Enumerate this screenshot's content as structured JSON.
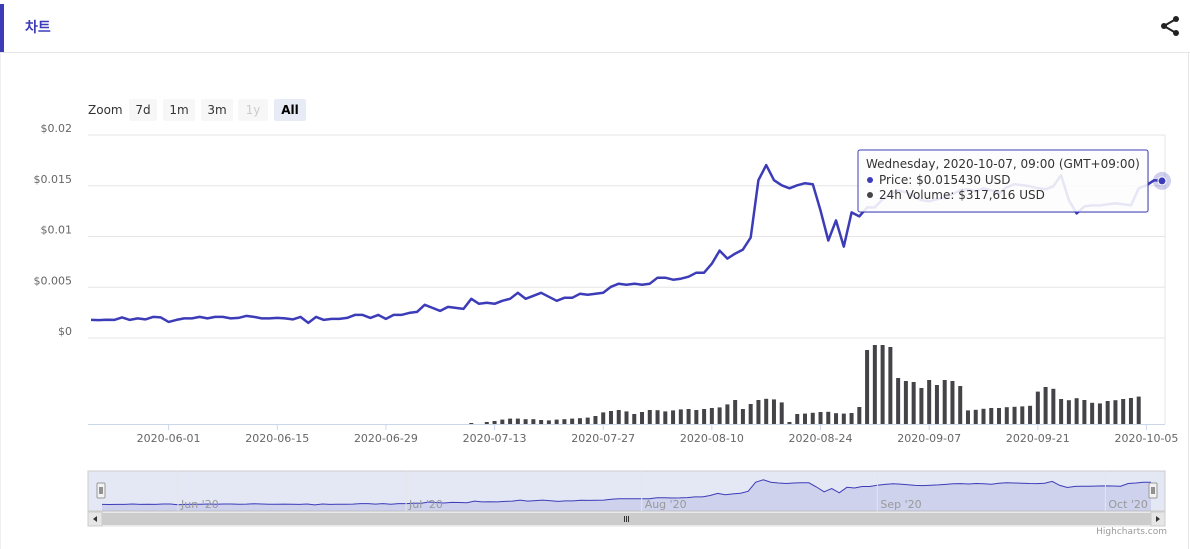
{
  "header": {
    "title": "차트"
  },
  "range_selector": {
    "zoom_label": "Zoom",
    "buttons": [
      {
        "label": "7d",
        "state": "normal"
      },
      {
        "label": "1m",
        "state": "normal"
      },
      {
        "label": "3m",
        "state": "normal"
      },
      {
        "label": "1y",
        "state": "disabled"
      },
      {
        "label": "All",
        "state": "active"
      }
    ]
  },
  "credits": "Highcharts.com",
  "colors": {
    "accent": "#3d3cb8",
    "volume": "#434348",
    "navigator_fill": "#ccd6eb"
  },
  "chart_data": {
    "type": "line",
    "y_axis": {
      "tick_labels": [
        "$0.02",
        "$0.015",
        "$0.01",
        "$0.005",
        "$0"
      ],
      "range": [
        0,
        0.02
      ]
    },
    "x_axis": {
      "tick_labels": [
        "2020-06-01",
        "2020-06-15",
        "2020-06-29",
        "2020-07-13",
        "2020-07-27",
        "2020-08-10",
        "2020-08-24",
        "2020-09-07",
        "2020-09-21",
        "2020-10-05"
      ]
    },
    "series": [
      {
        "name": "Price",
        "unit": "USD",
        "points": [
          [
            "2020-05-22",
            0.0016
          ],
          [
            "2020-05-23",
            0.00158
          ],
          [
            "2020-05-24",
            0.00162
          ],
          [
            "2020-05-25",
            0.0016
          ],
          [
            "2020-05-26",
            0.00185
          ],
          [
            "2020-05-27",
            0.0016
          ],
          [
            "2020-05-28",
            0.00175
          ],
          [
            "2020-05-29",
            0.00165
          ],
          [
            "2020-05-30",
            0.0019
          ],
          [
            "2020-05-31",
            0.00185
          ],
          [
            "2020-06-01",
            0.0014
          ],
          [
            "2020-06-02",
            0.0016
          ],
          [
            "2020-06-03",
            0.00175
          ],
          [
            "2020-06-04",
            0.00175
          ],
          [
            "2020-06-05",
            0.0019
          ],
          [
            "2020-06-06",
            0.00175
          ],
          [
            "2020-06-07",
            0.0019
          ],
          [
            "2020-06-08",
            0.0019
          ],
          [
            "2020-06-09",
            0.00175
          ],
          [
            "2020-06-10",
            0.0018
          ],
          [
            "2020-06-11",
            0.002
          ],
          [
            "2020-06-12",
            0.0019
          ],
          [
            "2020-06-13",
            0.00175
          ],
          [
            "2020-06-14",
            0.00175
          ],
          [
            "2020-06-15",
            0.0018
          ],
          [
            "2020-06-16",
            0.00175
          ],
          [
            "2020-06-17",
            0.00165
          ],
          [
            "2020-06-18",
            0.0019
          ],
          [
            "2020-06-19",
            0.0013
          ],
          [
            "2020-06-20",
            0.0019
          ],
          [
            "2020-06-21",
            0.0016
          ],
          [
            "2020-06-22",
            0.0017
          ],
          [
            "2020-06-23",
            0.0017
          ],
          [
            "2020-06-24",
            0.0018
          ],
          [
            "2020-06-25",
            0.0021
          ],
          [
            "2020-06-26",
            0.0021
          ],
          [
            "2020-06-27",
            0.0018
          ],
          [
            "2020-06-28",
            0.0021
          ],
          [
            "2020-06-29",
            0.0017
          ],
          [
            "2020-06-30",
            0.0021
          ],
          [
            "2020-07-01",
            0.0021
          ],
          [
            "2020-07-02",
            0.0023
          ],
          [
            "2020-07-03",
            0.0024
          ],
          [
            "2020-07-04",
            0.0031
          ],
          [
            "2020-07-05",
            0.0028
          ],
          [
            "2020-07-06",
            0.0025
          ],
          [
            "2020-07-07",
            0.0029
          ],
          [
            "2020-07-08",
            0.0028
          ],
          [
            "2020-07-09",
            0.0027
          ],
          [
            "2020-07-10",
            0.0037
          ],
          [
            "2020-07-11",
            0.0032
          ],
          [
            "2020-07-12",
            0.0033
          ],
          [
            "2020-07-13",
            0.0032
          ],
          [
            "2020-07-14",
            0.0035
          ],
          [
            "2020-07-15",
            0.0037
          ],
          [
            "2020-07-16",
            0.0043
          ],
          [
            "2020-07-17",
            0.0037
          ],
          [
            "2020-07-18",
            0.004
          ],
          [
            "2020-07-19",
            0.0043
          ],
          [
            "2020-07-20",
            0.0039
          ],
          [
            "2020-07-21",
            0.0035
          ],
          [
            "2020-07-22",
            0.0038
          ],
          [
            "2020-07-23",
            0.0038
          ],
          [
            "2020-07-24",
            0.0042
          ],
          [
            "2020-07-25",
            0.0041
          ],
          [
            "2020-07-26",
            0.0042
          ],
          [
            "2020-07-27",
            0.0043
          ],
          [
            "2020-07-28",
            0.0049
          ],
          [
            "2020-07-29",
            0.0052
          ],
          [
            "2020-07-30",
            0.0051
          ],
          [
            "2020-07-31",
            0.0052
          ],
          [
            "2020-08-01",
            0.0051
          ],
          [
            "2020-08-02",
            0.0052
          ],
          [
            "2020-08-03",
            0.0058
          ],
          [
            "2020-08-04",
            0.0058
          ],
          [
            "2020-08-05",
            0.0056
          ],
          [
            "2020-08-06",
            0.0057
          ],
          [
            "2020-08-07",
            0.0059
          ],
          [
            "2020-08-08",
            0.0063
          ],
          [
            "2020-08-09",
            0.0063
          ],
          [
            "2020-08-10",
            0.0072
          ],
          [
            "2020-08-11",
            0.0085
          ],
          [
            "2020-08-12",
            0.0077
          ],
          [
            "2020-08-13",
            0.0082
          ],
          [
            "2020-08-14",
            0.0086
          ],
          [
            "2020-08-15",
            0.0098
          ],
          [
            "2020-08-16",
            0.0155
          ],
          [
            "2020-08-17",
            0.017
          ],
          [
            "2020-08-18",
            0.0155
          ],
          [
            "2020-08-19",
            0.015
          ],
          [
            "2020-08-20",
            0.0147
          ],
          [
            "2020-08-21",
            0.015
          ],
          [
            "2020-08-22",
            0.0152
          ],
          [
            "2020-08-23",
            0.0151
          ],
          [
            "2020-08-24",
            0.0125
          ],
          [
            "2020-08-25",
            0.0095
          ],
          [
            "2020-08-26",
            0.0115
          ],
          [
            "2020-08-27",
            0.0089
          ],
          [
            "2020-08-28",
            0.0123
          ],
          [
            "2020-08-29",
            0.0119
          ],
          [
            "2020-08-30",
            0.0128
          ],
          [
            "2020-08-31",
            0.0128
          ],
          [
            "2020-09-01",
            0.0136
          ],
          [
            "2020-09-02",
            0.0141
          ],
          [
            "2020-09-03",
            0.0145
          ],
          [
            "2020-09-04",
            0.0143
          ],
          [
            "2020-09-05",
            0.0139
          ],
          [
            "2020-09-06",
            0.0135
          ],
          [
            "2020-09-07",
            0.0134
          ],
          [
            "2020-09-08",
            0.0136
          ],
          [
            "2020-09-09",
            0.0138
          ],
          [
            "2020-09-10",
            0.0141
          ],
          [
            "2020-09-11",
            0.0145
          ],
          [
            "2020-09-12",
            0.0146
          ],
          [
            "2020-09-13",
            0.0144
          ],
          [
            "2020-09-14",
            0.0147
          ],
          [
            "2020-09-15",
            0.0145
          ],
          [
            "2020-09-16",
            0.0142
          ],
          [
            "2020-09-17",
            0.0148
          ],
          [
            "2020-09-18",
            0.0151
          ],
          [
            "2020-09-19",
            0.015
          ],
          [
            "2020-09-20",
            0.0149
          ],
          [
            "2020-09-21",
            0.0147
          ],
          [
            "2020-09-22",
            0.0146
          ],
          [
            "2020-09-23",
            0.0149
          ],
          [
            "2020-09-24",
            0.016
          ],
          [
            "2020-09-25",
            0.0135
          ],
          [
            "2020-09-26",
            0.0122
          ],
          [
            "2020-09-27",
            0.0129
          ],
          [
            "2020-09-28",
            0.013
          ],
          [
            "2020-09-29",
            0.013
          ],
          [
            "2020-09-30",
            0.0131
          ],
          [
            "2020-10-01",
            0.0132
          ],
          [
            "2020-10-02",
            0.0131
          ],
          [
            "2020-10-03",
            0.013
          ],
          [
            "2020-10-04",
            0.0147
          ],
          [
            "2020-10-05",
            0.015
          ],
          [
            "2020-10-06",
            0.0155
          ],
          [
            "2020-10-07",
            0.01543
          ]
        ]
      },
      {
        "name": "24h Volume",
        "unit": "USD",
        "start_date": "2020-07-10",
        "values": [
          5000,
          0,
          10000,
          15000,
          22000,
          27000,
          27000,
          24000,
          24000,
          20000,
          18000,
          22000,
          24000,
          27000,
          29000,
          32000,
          40000,
          58000,
          65000,
          70000,
          63000,
          50000,
          60000,
          70000,
          69000,
          63000,
          68000,
          73000,
          75000,
          70000,
          75000,
          80000,
          83000,
          98000,
          120000,
          75000,
          100000,
          120000,
          126000,
          123000,
          108000,
          10000,
          50000,
          52000,
          56000,
          60000,
          61000,
          54000,
          52000,
          55000,
          85000,
          370000,
          395000,
          395000,
          385000,
          230000,
          215000,
          210000,
          180000,
          220000,
          195000,
          220000,
          215000,
          190000,
          68000,
          71000,
          76000,
          80000,
          80000,
          84000,
          86000,
          88000,
          91000,
          162000,
          185000,
          176000,
          125000,
          119000,
          129000,
          120000,
          106000,
          103000,
          115000,
          119000,
          125000,
          130000,
          137000
        ]
      }
    ],
    "tooltip": {
      "header": "Wednesday, 2020-10-07, 09:00 (GMT+09:00)",
      "rows": [
        {
          "label": "Price",
          "value": "$0.015430 USD"
        },
        {
          "label": "24h Volume",
          "value": "$317,616 USD"
        }
      ]
    },
    "navigator": {
      "labels": [
        "Jun '20",
        "Jul '20",
        "Aug '20",
        "Sep '20",
        "Oct '20"
      ],
      "range": [
        "2020-05-22",
        "2020-10-07"
      ]
    }
  }
}
